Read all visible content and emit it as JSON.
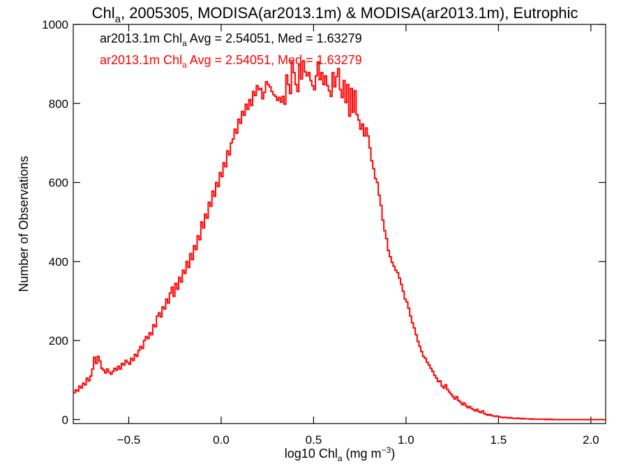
{
  "chart_data": {
    "type": "step",
    "title": {
      "prefix": "Chl",
      "sub": "a",
      "rest": ", 2005305, MODISA(ar2013.1m) & MODISA(ar2013.1m), Eutrophic"
    },
    "xlabel": {
      "prefix": "log10 Chl",
      "sub": "a",
      "mid": " (mg m",
      "sup": "−3",
      "suffix": ")"
    },
    "ylabel": "Number of Observations",
    "xlim": [
      -0.8,
      2.08
    ],
    "ylim": [
      -10,
      1000
    ],
    "xticks": [
      {
        "value": -0.5,
        "label": "−0.5"
      },
      {
        "value": 0.0,
        "label": "0.0"
      },
      {
        "value": 0.5,
        "label": "0.5"
      },
      {
        "value": 1.0,
        "label": "1.0"
      },
      {
        "value": 1.5,
        "label": "1.5"
      },
      {
        "value": 2.0,
        "label": "2.0"
      }
    ],
    "yticks": [
      {
        "value": 0,
        "label": "0"
      },
      {
        "value": 200,
        "label": "200"
      },
      {
        "value": 400,
        "label": "400"
      },
      {
        "value": 600,
        "label": "600"
      },
      {
        "value": 800,
        "label": "800"
      },
      {
        "value": 1000,
        "label": "1000"
      }
    ],
    "annotations": [
      {
        "pre": "ar2013.1m Chl",
        "sub": "a",
        "post": " Avg = 2.54051, Med = 1.63279",
        "color": "#000000"
      },
      {
        "pre": "ar2013.1m Chl",
        "sub": "a",
        "post": " Avg = 2.54051, Med = 1.63279",
        "color": "#ff0000"
      }
    ],
    "series": [
      {
        "color": "#ff0000",
        "x_start": -0.8,
        "bin_width": 0.01,
        "values": [
          68,
          75,
          72,
          85,
          80,
          92,
          88,
          105,
          98,
          110,
          128,
          158,
          142,
          160,
          148,
          130,
          125,
          118,
          128,
          120,
          115,
          122,
          130,
          125,
          135,
          128,
          142,
          138,
          150,
          145,
          140,
          155,
          150,
          165,
          160,
          175,
          185,
          180,
          200,
          210,
          205,
          220,
          215,
          240,
          235,
          262,
          270,
          260,
          285,
          280,
          305,
          295,
          320,
          335,
          312,
          345,
          330,
          360,
          348,
          378,
          370,
          400,
          385,
          420,
          405,
          440,
          430,
          465,
          455,
          500,
          485,
          520,
          510,
          550,
          540,
          578,
          565,
          600,
          590,
          625,
          615,
          650,
          640,
          680,
          670,
          700,
          710,
          735,
          725,
          760,
          750,
          780,
          770,
          798,
          785,
          810,
          795,
          830,
          820,
          845,
          835,
          838,
          812,
          828,
          855,
          848,
          842,
          830,
          822,
          818,
          808,
          815,
          803,
          818,
          798,
          872,
          848,
          825,
          905,
          878,
          848,
          830,
          898,
          862,
          908,
          880,
          870,
          878,
          858,
          845,
          835,
          870,
          905,
          860,
          878,
          848,
          870,
          845,
          832,
          818,
          878,
          842,
          868,
          888,
          835,
          815,
          858,
          802,
          848,
          768,
          838,
          778,
          832,
          772,
          758,
          735,
          748,
          718,
          738,
          718,
          688,
          655,
          635,
          610,
          600,
          568,
          542,
          505,
          478,
          458,
          428,
          412,
          398,
          388,
          378,
          372,
          358,
          342,
          325,
          305,
          298,
          282,
          262,
          245,
          232,
          215,
          198,
          185,
          172,
          160,
          155,
          145,
          138,
          130,
          122,
          112,
          105,
          96,
          98,
          85,
          80,
          88,
          76,
          70,
          64,
          58,
          52,
          58,
          48,
          44,
          38,
          42,
          35,
          30,
          33,
          28,
          25,
          22,
          26,
          20,
          18,
          22,
          15,
          13,
          11,
          13,
          10,
          9,
          8,
          9,
          7,
          6,
          5,
          6,
          5,
          4,
          5,
          4,
          3,
          3,
          4,
          3,
          2,
          3,
          2,
          2,
          2,
          1,
          2,
          1,
          1,
          1,
          1,
          1,
          1,
          0,
          1,
          0,
          1,
          0,
          0,
          0,
          0,
          0,
          0,
          0,
          0,
          0,
          0,
          0,
          0,
          0,
          0,
          0,
          0,
          0,
          0,
          0,
          0,
          0,
          0,
          0,
          0,
          0,
          0,
          0,
          0,
          0,
          0,
          0,
          0,
          0,
          0,
          0,
          0,
          0,
          0,
          0,
          0,
          0,
          0,
          0,
          0,
          0,
          0,
          0,
          0,
          0,
          0,
          0,
          0,
          0,
          0
        ]
      }
    ],
    "grid": false
  }
}
